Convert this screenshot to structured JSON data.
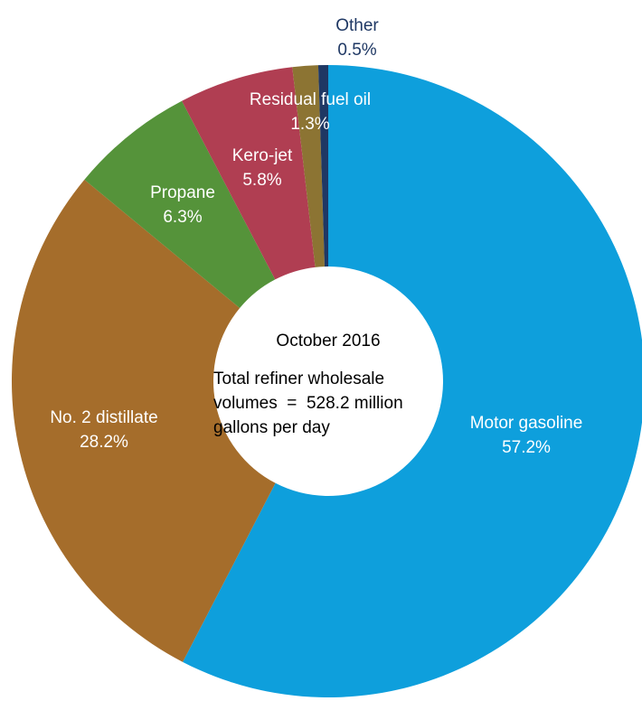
{
  "chart_data": {
    "type": "pie",
    "variant": "donut",
    "slices": [
      {
        "label": "Motor gasoline",
        "value": 57.2,
        "value_text": "57.2%",
        "color": "#0e9fdc"
      },
      {
        "label": "No. 2 distillate",
        "value": 28.2,
        "value_text": "28.2%",
        "color": "#a56d2b"
      },
      {
        "label": "Propane",
        "value": 6.3,
        "value_text": "6.3%",
        "color": "#55933a"
      },
      {
        "label": "Kero-jet",
        "value": 5.8,
        "value_text": "5.8%",
        "color": "#b03e52"
      },
      {
        "label": "Residual fuel oil",
        "value": 1.3,
        "value_text": "1.3%",
        "color": "#8c7433"
      },
      {
        "label": "Other",
        "value": 0.5,
        "value_text": "0.5%",
        "color": "#1f3864"
      }
    ],
    "center": {
      "title": "October 2016",
      "lines": [
        "Total refiner wholesale",
        "volumes  =  528.2 million",
        "gallons per day"
      ]
    },
    "legend": "none"
  }
}
